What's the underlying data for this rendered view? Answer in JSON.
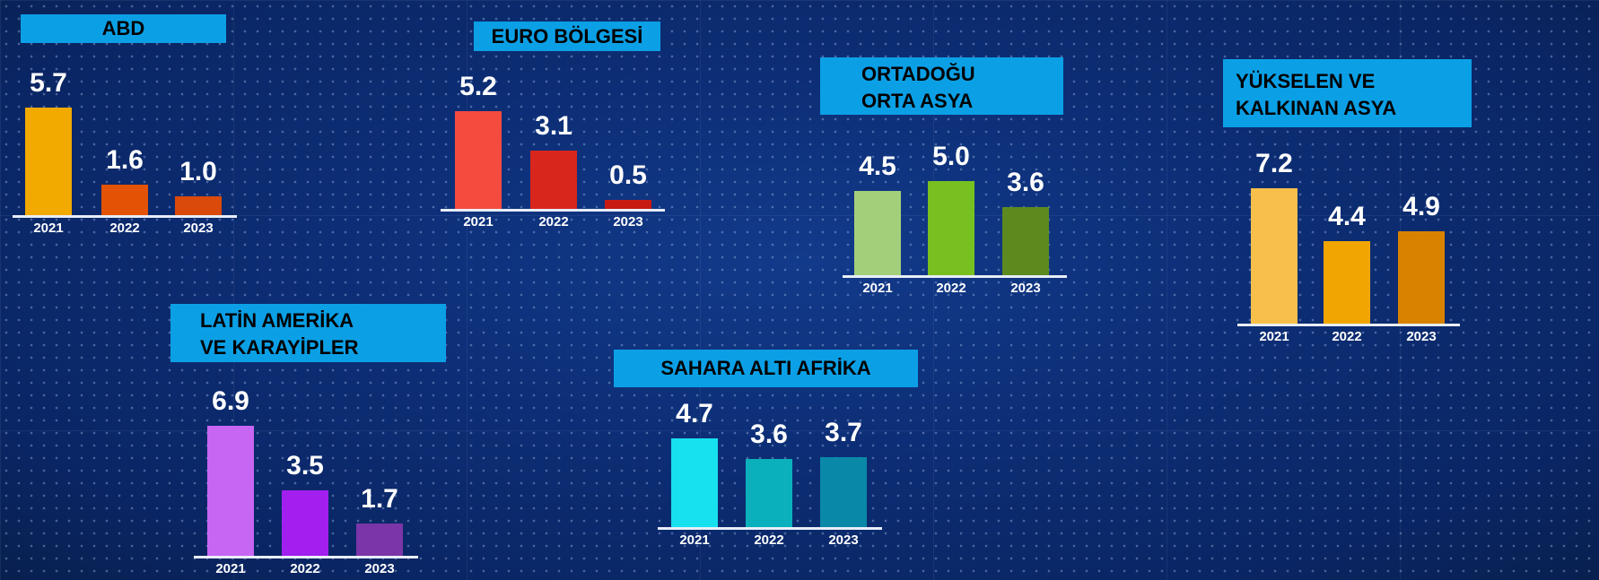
{
  "chart_data": [
    {
      "type": "bar",
      "title": "ABD",
      "categories": [
        "2021",
        "2022",
        "2023"
      ],
      "values": [
        5.7,
        1.6,
        1.0
      ],
      "colors": [
        "#f2a900",
        "#e35205",
        "#d94a0b"
      ]
    },
    {
      "type": "bar",
      "title": "EURO BÖLGESİ",
      "categories": [
        "2021",
        "2022",
        "2023"
      ],
      "values": [
        5.2,
        3.1,
        0.5
      ],
      "colors": [
        "#f44b3f",
        "#d9261c",
        "#c81a12"
      ]
    },
    {
      "type": "bar",
      "title": "ORTADOĞU\nORTA ASYA",
      "title_lines": [
        "ORTADOĞU",
        "ORTA ASYA"
      ],
      "categories": [
        "2021",
        "2022",
        "2023"
      ],
      "values": [
        4.5,
        5.0,
        3.6
      ],
      "colors": [
        "#a4cf7a",
        "#78c020",
        "#5c8a1e"
      ]
    },
    {
      "type": "bar",
      "title": "YÜKSELEN VE\nKALKINAN ASYA",
      "title_lines": [
        "YÜKSELEN VE",
        "KALKINAN ASYA"
      ],
      "categories": [
        "2021",
        "2022",
        "2023"
      ],
      "values": [
        7.2,
        4.4,
        4.9
      ],
      "colors": [
        "#f8c04a",
        "#f0a500",
        "#d88200"
      ]
    },
    {
      "type": "bar",
      "title": "LATİN AMERİKA\nVE KARAYİPLER",
      "title_lines": [
        "LATİN AMERİKA",
        "VE KARAYİPLER"
      ],
      "categories": [
        "2021",
        "2022",
        "2023"
      ],
      "values": [
        6.9,
        3.5,
        1.7
      ],
      "colors": [
        "#c766f2",
        "#a21ff0",
        "#7b35a8"
      ]
    },
    {
      "type": "bar",
      "title": "SAHARA ALTI AFRİKA",
      "categories": [
        "2021",
        "2022",
        "2023"
      ],
      "values": [
        4.7,
        3.6,
        3.7
      ],
      "colors": [
        "#17e0ef",
        "#0ab0bc",
        "#0a88a8"
      ]
    }
  ],
  "colors": {
    "background": "#0c2d74",
    "title_box": "#0ba0e6"
  }
}
